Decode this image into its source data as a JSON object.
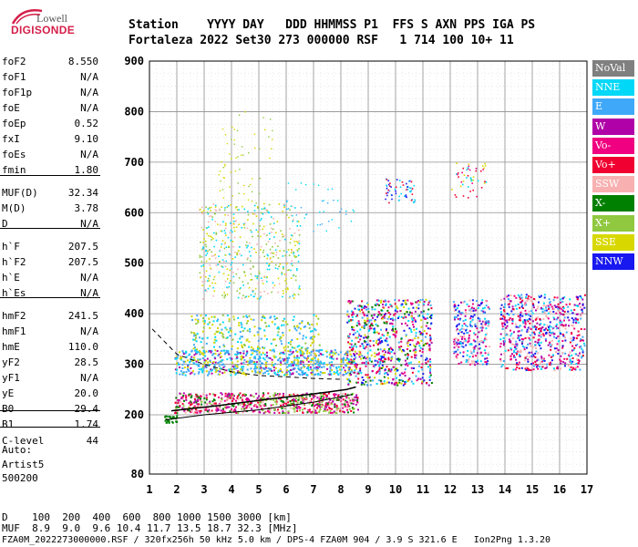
{
  "logo": {
    "line1": "Lowell",
    "line2": "DIGISONDE"
  },
  "header": {
    "row1": "Station    YYYY DAY   DDD HHMMSS P1  FFS S AXN PPS IGA PS",
    "row2": "Fortaleza 2022 Set30 273 000000 RSF   1 714 100 10+ 11"
  },
  "params": [
    {
      "name": "foF2",
      "value": "8.550"
    },
    {
      "name": "foF1",
      "value": "N/A"
    },
    {
      "name": "foF1p",
      "value": "N/A"
    },
    {
      "name": "foE",
      "value": "N/A"
    },
    {
      "name": "foEp",
      "value": "0.52"
    },
    {
      "name": "fxI",
      "value": "9.10"
    },
    {
      "name": "foEs",
      "value": "N/A"
    },
    {
      "name": "fmin",
      "value": "1.80"
    },
    {
      "name": "MUF(D)",
      "value": "32.34"
    },
    {
      "name": "M(D)",
      "value": "3.78"
    },
    {
      "name": "D",
      "value": "N/A"
    },
    {
      "name": "h`F",
      "value": "207.5"
    },
    {
      "name": "h`F2",
      "value": "207.5"
    },
    {
      "name": "h`E",
      "value": "N/A"
    },
    {
      "name": "h`Es",
      "value": "N/A"
    },
    {
      "name": "hmF2",
      "value": "241.5"
    },
    {
      "name": "hmF1",
      "value": "N/A"
    },
    {
      "name": "hmE",
      "value": "110.0"
    },
    {
      "name": "yF2",
      "value": "28.5"
    },
    {
      "name": "yF1",
      "value": "N/A"
    },
    {
      "name": "yE",
      "value": "20.0"
    },
    {
      "name": "B0",
      "value": "29.4"
    },
    {
      "name": "B1",
      "value": "1.74"
    },
    {
      "name": "C-level",
      "value": "44"
    }
  ],
  "auto": {
    "line1": "Auto:",
    "line2": "Artist5",
    "line3": "500200"
  },
  "legend": [
    {
      "label": "NoVal",
      "color": "#808080"
    },
    {
      "label": "NNE",
      "color": "#00d8f8"
    },
    {
      "label": "E",
      "color": "#40a8f8"
    },
    {
      "label": "W",
      "color": "#b000a8"
    },
    {
      "label": "Vo-",
      "color": "#f00080"
    },
    {
      "label": "Vo+",
      "color": "#f00030"
    },
    {
      "label": "SSW",
      "color": "#f8b0b0"
    },
    {
      "label": "X-",
      "color": "#008000"
    },
    {
      "label": "X+",
      "color": "#90c840"
    },
    {
      "label": "SSE",
      "color": "#d8d800"
    },
    {
      "label": "NNW",
      "color": "#1818f0"
    }
  ],
  "bottom": {
    "d_row": "D    100  200  400  600  800 1000 1500 3000 [km]",
    "muf_row": "MUF  8.9  9.0  9.6 10.4 11.7 13.5 18.7 32.3 [MHz]",
    "file_row": "FZA0M_2022273000000.RSF / 320fx256h 50 kHz 5.0 km / DPS-4 FZA0M 904 / 3.9 S 321.6 E   Ion2Png 1.3.20"
  },
  "chart_data": {
    "type": "scatter",
    "xlim": [
      1,
      17
    ],
    "ylim": [
      80,
      900
    ],
    "x_ticks": [
      1,
      2,
      3,
      4,
      5,
      6,
      7,
      8,
      9,
      10,
      11,
      12,
      13,
      14,
      15,
      16,
      17
    ],
    "y_ticks": [
      80,
      200,
      300,
      400,
      500,
      600,
      700,
      800,
      900
    ],
    "grid": true,
    "legend_placement": "right",
    "profile_trace": {
      "x": [
        1.8,
        2.5,
        3.5,
        4.5,
        5.5,
        6.5,
        7.5,
        8.2,
        8.55
      ],
      "y": [
        208,
        212,
        218,
        225,
        232,
        238,
        245,
        250,
        255
      ]
    },
    "profile_lower": {
      "x": [
        1.6,
        3,
        5,
        7,
        8.4
      ],
      "y": [
        190,
        200,
        210,
        225,
        240
      ]
    },
    "dashed_profile": {
      "x": [
        1.1,
        2,
        3,
        4,
        5,
        6,
        7,
        8.1
      ],
      "y": [
        370,
        320,
        300,
        285,
        278,
        275,
        272,
        270
      ]
    }
  }
}
